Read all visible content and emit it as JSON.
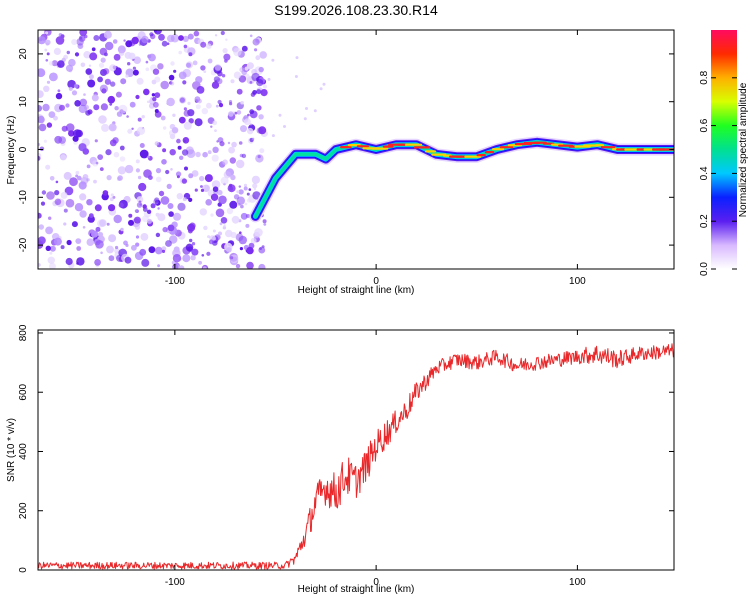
{
  "title": "S199.2026.108.23.30.R14",
  "colors": {
    "snr_line": "#e8282a",
    "ridge_low": "#1010ff",
    "ridge_mid": "#00e0a0",
    "ridge_high": "#ff2020",
    "noise": "#7a2cf0"
  },
  "chart_data": [
    {
      "type": "heatmap",
      "title": "S199.2026.108.23.30.R14",
      "xlabel": "Height of straight line (km)",
      "ylabel": "Frequency (Hz)",
      "xlim": [
        -168,
        148
      ],
      "ylim": [
        -25,
        25
      ],
      "xticks": [
        -100,
        0,
        100
      ],
      "xtick_labels": [
        "-100",
        "0",
        "100"
      ],
      "yticks": [
        -20,
        -10,
        0,
        10,
        20
      ],
      "ytick_labels": [
        "-20",
        "-10",
        "0",
        "10",
        "20"
      ],
      "colorbar": {
        "label": "Normalized spectral amplitude",
        "range": [
          0,
          1
        ],
        "ticks": [
          0.0,
          0.2,
          0.4,
          0.6,
          0.8
        ],
        "tick_labels": [
          "0.0",
          "0.2",
          "0.4",
          "0.6",
          "0.8"
        ]
      },
      "ridge": {
        "x": [
          -60,
          -50,
          -40,
          -30,
          -25,
          -20,
          -10,
          0,
          10,
          20,
          30,
          40,
          50,
          60,
          70,
          80,
          90,
          100,
          110,
          120,
          130,
          140,
          148
        ],
        "y": [
          -14,
          -6,
          -1,
          -1,
          -2,
          0,
          1,
          0,
          1,
          1,
          -1,
          -1.5,
          -1.5,
          0,
          1,
          1.5,
          1,
          0.5,
          1,
          0,
          0,
          0,
          0
        ]
      },
      "noise_region_x": [
        -168,
        -55
      ]
    },
    {
      "type": "line",
      "xlabel": "Height of straight line (km)",
      "ylabel": "SNR (10 * v/v)",
      "xlim": [
        -168,
        148
      ],
      "ylim": [
        0,
        810
      ],
      "xticks": [
        -100,
        0,
        100
      ],
      "xtick_labels": [
        "-100",
        "0",
        "100"
      ],
      "yticks": [
        0,
        200,
        400,
        600,
        800
      ],
      "ytick_labels": [
        "0",
        "200",
        "400",
        "600",
        "800"
      ],
      "series": [
        {
          "name": "SNR",
          "x": [
            -168,
            -60,
            -45,
            -40,
            -35,
            -30,
            -25,
            -20,
            -15,
            -10,
            -5,
            0,
            5,
            10,
            15,
            20,
            25,
            30,
            40,
            50,
            60,
            70,
            80,
            90,
            100,
            110,
            120,
            130,
            140,
            148
          ],
          "y": [
            15,
            15,
            15,
            40,
            120,
            230,
            280,
            260,
            320,
            300,
            350,
            420,
            460,
            500,
            540,
            600,
            640,
            680,
            710,
            700,
            720,
            690,
            700,
            710,
            720,
            730,
            710,
            730,
            735,
            740
          ],
          "noise_amplitude": [
            12,
            12,
            12,
            20,
            40,
            60,
            60,
            70,
            70,
            60,
            60,
            50,
            50,
            40,
            40,
            35,
            30,
            25,
            25,
            25,
            25,
            25,
            25,
            25,
            25,
            35,
            30,
            25,
            25,
            25
          ]
        }
      ]
    }
  ]
}
